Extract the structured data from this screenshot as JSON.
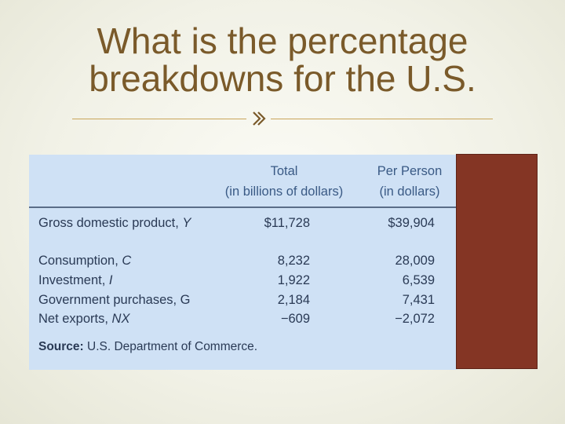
{
  "slide": {
    "title_line1": "What is the percentage",
    "title_line2": "breakdowns for the U.S."
  },
  "table": {
    "header_total_line1": "Total",
    "header_total_line2": "(in billions of dollars)",
    "header_per_line1": "Per Person",
    "header_per_line2": "(in dollars)",
    "rows": [
      {
        "label": "Gross domestic product, ",
        "var": "Y",
        "total": "$11,728",
        "per_person": "$39,904"
      },
      {
        "label": "Consumption, ",
        "var": "C",
        "total": "8,232",
        "per_person": "28,009"
      },
      {
        "label": "Investment, ",
        "var": "I",
        "total": "1,922",
        "per_person": "6,539"
      },
      {
        "label": "Government purchases, ",
        "var": "G",
        "total": "2,184",
        "per_person": "7,431"
      },
      {
        "label": "Net exports, ",
        "var": "NX",
        "total": "−609",
        "per_person": "−2,072"
      }
    ],
    "source_label": "Source:",
    "source_text": " U.S. Department of Commerce."
  },
  "colors": {
    "title": "#7a5a2a",
    "table_bg": "#cfe1f5",
    "red_panel": "#843524"
  }
}
